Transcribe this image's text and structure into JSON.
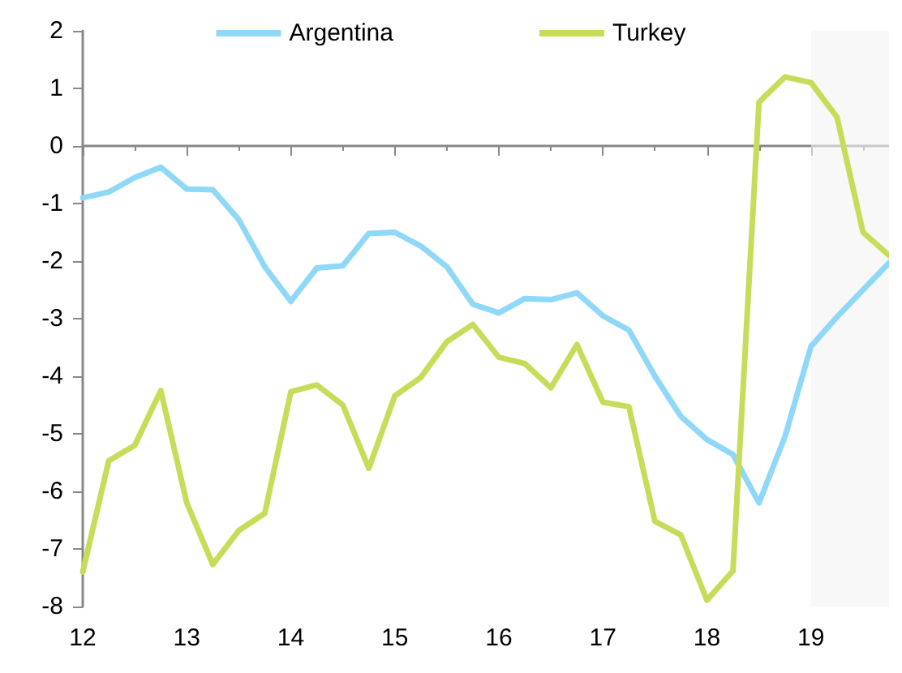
{
  "chart_data": {
    "type": "line",
    "x": [
      12,
      12.25,
      12.5,
      12.75,
      13,
      13.25,
      13.5,
      13.75,
      14,
      14.25,
      14.5,
      14.75,
      15,
      15.25,
      15.5,
      15.75,
      16,
      16.25,
      16.5,
      16.75,
      17,
      17.25,
      17.5,
      17.75,
      18,
      18.25,
      18.5,
      18.75,
      19,
      19.25,
      19.5,
      19.75
    ],
    "series": [
      {
        "name": "Argentina",
        "color": "#8fd8f8",
        "values": [
          -0.9,
          -0.8,
          -0.55,
          -0.37,
          -0.75,
          -0.76,
          -1.28,
          -2.1,
          -2.7,
          -2.12,
          -2.08,
          -1.52,
          -1.5,
          -1.74,
          -2.1,
          -2.75,
          -2.9,
          -2.65,
          -2.67,
          -2.55,
          -2.95,
          -3.2,
          -4.0,
          -4.7,
          -5.1,
          -5.36,
          -6.2,
          -5.05,
          -3.48,
          -2.97,
          -2.5,
          -2.03
        ]
      },
      {
        "name": "Turkey",
        "color": "#c8dc5a",
        "values": [
          -7.4,
          -5.47,
          -5.2,
          -4.25,
          -6.2,
          -7.27,
          -6.68,
          -6.38,
          -4.27,
          -4.15,
          -4.5,
          -5.6,
          -4.34,
          -4.02,
          -3.4,
          -3.1,
          -3.67,
          -3.78,
          -4.2,
          -3.45,
          -4.45,
          -4.53,
          -6.52,
          -6.76,
          -7.89,
          -7.38,
          0.76,
          1.2,
          1.1,
          0.5,
          -1.5,
          -1.9
        ]
      }
    ],
    "xlim": [
      12,
      19.75
    ],
    "xticks": [
      12,
      13,
      14,
      15,
      16,
      17,
      18,
      19
    ],
    "ylim": [
      -8,
      2
    ],
    "yticks": [
      -8,
      -7,
      -6,
      -5,
      -4,
      -3,
      -2,
      -1,
      0,
      1,
      2
    ],
    "bands": [
      {
        "axis": "x",
        "from": 19,
        "to": 19.75,
        "color": "#f4f4f4"
      }
    ],
    "legend": "top",
    "marker": "none",
    "line_style": "solid"
  }
}
